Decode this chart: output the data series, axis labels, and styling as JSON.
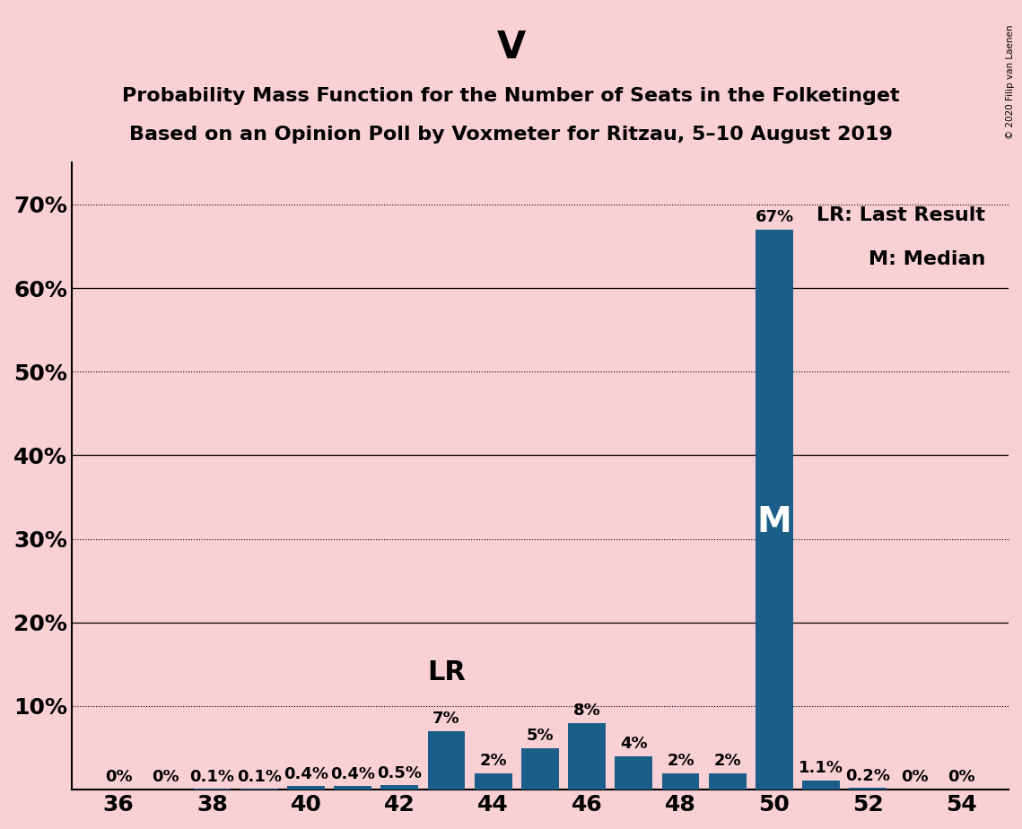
{
  "title_main": "V",
  "title_line1": "Probability Mass Function for the Number of Seats in the Folketinget",
  "title_line2": "Based on an Opinion Poll by Voxmeter for Ritzau, 5–10 August 2019",
  "background_color": "#F9D0D4",
  "bar_color": "#1B5E8A",
  "seats": [
    36,
    37,
    38,
    39,
    40,
    41,
    42,
    43,
    44,
    45,
    46,
    47,
    48,
    49,
    50,
    51,
    52,
    53,
    54
  ],
  "probabilities": [
    0.0,
    0.0,
    0.1,
    0.1,
    0.4,
    0.4,
    0.5,
    7.0,
    2.0,
    5.0,
    8.0,
    4.0,
    2.0,
    2.0,
    67.0,
    1.1,
    0.2,
    0.0,
    0.0
  ],
  "labels": [
    "0%",
    "0%",
    "0.1%",
    "0.1%",
    "0.4%",
    "0.4%",
    "0.5%",
    "7%",
    "2%",
    "5%",
    "8%",
    "4%",
    "2%",
    "2%",
    "67%",
    "1.1%",
    "0.2%",
    "0%",
    "0%"
  ],
  "xtick_positions": [
    36,
    38,
    40,
    42,
    44,
    46,
    48,
    50,
    52,
    54
  ],
  "ytick_positions": [
    0,
    10,
    20,
    30,
    40,
    50,
    60,
    70
  ],
  "ytick_labels": [
    "",
    "10%",
    "20%",
    "30%",
    "40%",
    "50%",
    "60%",
    "70%"
  ],
  "solid_gridlines": [
    20,
    40,
    60
  ],
  "dotted_gridlines": [
    10,
    30,
    50,
    70
  ],
  "ylim": [
    0,
    75
  ],
  "xlim": [
    35,
    55
  ],
  "lr_seat": 43,
  "median_seat": 50,
  "legend_lr": "LR: Last Result",
  "legend_m": "M: Median",
  "copyright": "© 2020 Filip van Laenen",
  "title_fontsize": 30,
  "subtitle_fontsize": 16,
  "axis_fontsize": 18,
  "label_fontsize": 13,
  "lr_fontsize": 22,
  "m_fontsize": 28
}
